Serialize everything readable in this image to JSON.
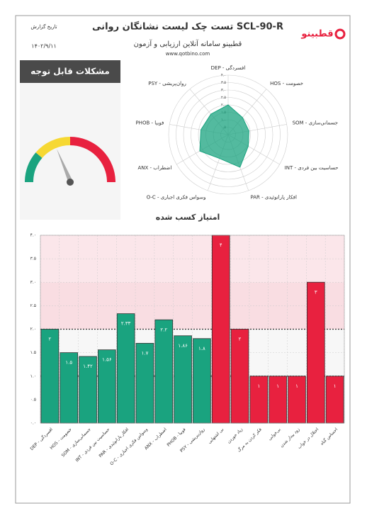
{
  "header": {
    "title": "تست چک لیست نشانگان روانی SCL-90-R",
    "subtitle": "قطبینو سامانه آنلاین ارزیابی و آزمون",
    "website": "www.qotbino.com",
    "date_label": "تاریخ گزارش",
    "date": "۱۴۰۲/۹/۱۱",
    "logo": "قطبینو"
  },
  "gauge": {
    "title": "مشکلات قابل توجه"
  },
  "chart_data": [
    {
      "type": "radar",
      "categories": [
        "DEP - افسردگی",
        "HOS - خصومت",
        "SOM - جسمانی‌سازی",
        "INT - حساسیت بین فردی",
        "PAR - افکار پارانوئیدی",
        "O-C - وسواس فکری اجباری",
        "ANX - اضطراب",
        "PHOB - فوبیا",
        "PSY - روان‌پریشی"
      ],
      "values": [
        2,
        1.5,
        1.42,
        1.56,
        2.33,
        1.7,
        2.2,
        1.86,
        1.8
      ],
      "color": "#1aa37f",
      "rlim": [
        0,
        4
      ],
      "rticks": [
        {
          "value": 0.5,
          "label": "۰.۵"
        },
        {
          "value": 1,
          "label": "۱.۰"
        },
        {
          "value": 1.5,
          "label": "۱.۵"
        },
        {
          "value": 2,
          "label": "۲.۰"
        },
        {
          "value": 2.5,
          "label": "۲.۵"
        },
        {
          "value": 3,
          "label": "۳.۰"
        },
        {
          "value": 3.5,
          "label": "۳.۵"
        },
        {
          "value": 4,
          "label": "۴.۰"
        }
      ]
    },
    {
      "type": "bar",
      "title": "امتیاز کسب شده",
      "categories": [
        "DEP - افسردگی",
        "HOS - خصومت",
        "SOM - جسمانی‌سازی",
        "INT - حساسیت بین فردی",
        "PAR - افکار پارانوئیدی",
        "O-C - وسواس فکری اجباری",
        "ANX - اضطراب",
        "PHOB - فوبیا",
        "PSY - روان‌پریشی",
        "بی اشتهایی",
        "زیاد خوردن",
        "فکر کردن به مرگ",
        "بی‌خوابی",
        "زود بیدار شدن",
        "اختلال در خواب",
        "احساس گناه"
      ],
      "values": [
        2,
        1.5,
        1.42,
        1.56,
        2.33,
        1.7,
        2.2,
        1.86,
        1.8,
        4,
        2,
        1,
        1,
        1,
        3,
        1
      ],
      "value_labels": [
        "۲",
        "۱.۵",
        "۱.۴۲",
        "۱.۵۶",
        "۲.۳۳",
        "۱.۷",
        "۲.۲",
        "۱.۸۶",
        "۱.۸",
        "۴",
        "۲",
        "۱",
        "۱",
        "۱",
        "۳",
        "۱"
      ],
      "colors": [
        "#1aa37f",
        "#1aa37f",
        "#1aa37f",
        "#1aa37f",
        "#1aa37f",
        "#1aa37f",
        "#1aa37f",
        "#1aa37f",
        "#1aa37f",
        "#e8213f",
        "#e8213f",
        "#e8213f",
        "#e8213f",
        "#e8213f",
        "#e8213f",
        "#e8213f"
      ],
      "ylim": [
        0,
        4
      ],
      "yticks": [
        {
          "value": 0,
          "label": "۰.۰"
        },
        {
          "value": 0.5,
          "label": "۰.۵"
        },
        {
          "value": 1,
          "label": "۱.۰"
        },
        {
          "value": 1.5,
          "label": "۱.۵"
        },
        {
          "value": 2,
          "label": "۲.۰"
        },
        {
          "value": 2.5,
          "label": "۲.۵"
        },
        {
          "value": 3,
          "label": "۳.۰"
        },
        {
          "value": 3.5,
          "label": "۳.۵"
        },
        {
          "value": 4,
          "label": "۴.۰"
        }
      ],
      "bands": [
        {
          "from": 0,
          "to": 1,
          "color": "#dff1ec"
        },
        {
          "from": 1,
          "to": 2,
          "color": "#f7f7f7"
        },
        {
          "from": 2,
          "to": 3,
          "color": "#f9dde2"
        },
        {
          "from": 3,
          "to": 4,
          "color": "#fbe6ea"
        }
      ],
      "thresholds": [
        1,
        2
      ],
      "grid": true
    }
  ]
}
